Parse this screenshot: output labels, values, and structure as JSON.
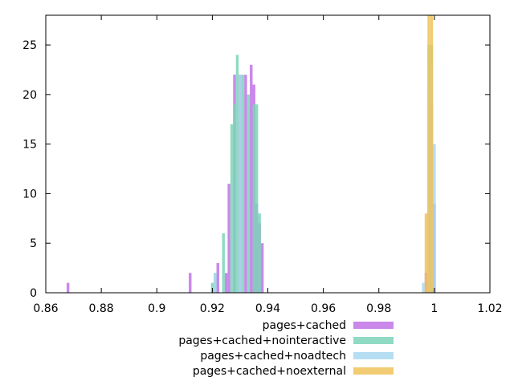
{
  "chart_data": {
    "type": "bar",
    "title": "",
    "xlabel": "",
    "ylabel": "",
    "xlim": [
      0.86,
      1.02
    ],
    "ylim": [
      0,
      28
    ],
    "x_ticks": [
      "0.86",
      "0.88",
      "0.9",
      "0.92",
      "0.94",
      "0.96",
      "0.98",
      "1",
      "1.02"
    ],
    "y_ticks": [
      "0",
      "5",
      "10",
      "15",
      "20",
      "25"
    ],
    "grid": false,
    "legend_position": "bottom",
    "bin_width": 0.001,
    "series": [
      {
        "name": "pages+cached",
        "color": "#c173e8",
        "bins": [
          [
            0.868,
            1
          ],
          [
            0.912,
            2
          ],
          [
            0.922,
            3
          ],
          [
            0.925,
            2
          ],
          [
            0.926,
            11
          ],
          [
            0.928,
            22
          ],
          [
            0.93,
            22
          ],
          [
            0.932,
            22
          ],
          [
            0.934,
            23
          ],
          [
            0.935,
            21
          ],
          [
            0.936,
            9
          ],
          [
            0.937,
            7
          ],
          [
            0.938,
            5
          ],
          [
            0.997,
            2
          ],
          [
            0.999,
            19
          ],
          [
            1.0,
            9
          ]
        ]
      },
      {
        "name": "pages+cached+nointeractive",
        "color": "#7dd3b8",
        "bins": [
          [
            0.92,
            1
          ],
          [
            0.921,
            2
          ],
          [
            0.924,
            6
          ],
          [
            0.927,
            17
          ],
          [
            0.928,
            19
          ],
          [
            0.929,
            24
          ],
          [
            0.931,
            22
          ],
          [
            0.933,
            20
          ],
          [
            0.935,
            19
          ],
          [
            0.936,
            19
          ],
          [
            0.937,
            8
          ],
          [
            0.998,
            25
          ],
          [
            0.999,
            25
          ]
        ]
      },
      {
        "name": "pages+cached+noadtech",
        "color": "#a8d8f0",
        "bins": [
          [
            0.921,
            2
          ],
          [
            0.93,
            22
          ],
          [
            0.996,
            1
          ],
          [
            0.998,
            21
          ],
          [
            0.999,
            23
          ],
          [
            1.0,
            15
          ]
        ]
      },
      {
        "name": "pages+cached+noexternal",
        "color": "#f0c35a",
        "bins": [
          [
            0.997,
            8
          ],
          [
            0.998,
            28
          ],
          [
            0.999,
            28
          ]
        ]
      }
    ]
  }
}
